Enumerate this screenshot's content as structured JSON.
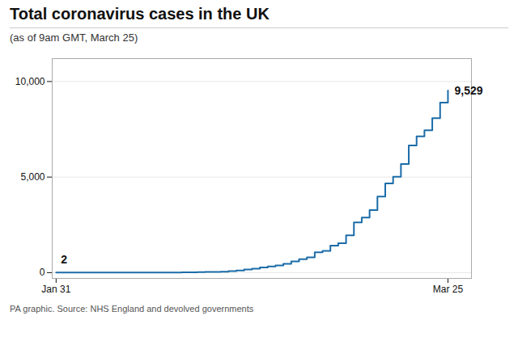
{
  "chart_data": {
    "type": "step",
    "title": "Total coronavirus cases in the UK",
    "subtitle": "(as of 9am GMT, March 25)",
    "source": "PA graphic. Source: NHS England and devolved governments",
    "color": "#1b6ca8",
    "x": [
      0,
      1,
      2,
      3,
      4,
      5,
      6,
      7,
      8,
      9,
      10,
      11,
      12,
      13,
      14,
      15,
      16,
      17,
      18,
      19,
      20,
      21,
      22,
      23,
      24,
      25,
      26,
      27,
      28,
      29,
      30,
      31,
      32,
      33,
      34,
      35,
      36,
      37,
      38,
      39,
      40,
      41,
      42,
      43,
      44,
      45,
      46,
      47,
      48,
      49,
      50
    ],
    "values": [
      2,
      2,
      2,
      3,
      3,
      3,
      3,
      3,
      3,
      3,
      4,
      4,
      4,
      4,
      9,
      9,
      13,
      19,
      23,
      35,
      40,
      51,
      85,
      115,
      163,
      206,
      273,
      321,
      373,
      456,
      590,
      708,
      798,
      1061,
      1140,
      1408,
      1543,
      1950,
      2626,
      2885,
      3269,
      3983,
      4667,
      5018,
      5683,
      6650,
      7132,
      7447,
      8077,
      8895,
      9529
    ],
    "xlim": [
      -0.5,
      53
    ],
    "xticks": [
      {
        "value": 0,
        "label": "Jan 31"
      },
      {
        "value": 50,
        "label": "Mar 25"
      }
    ],
    "ylim": [
      -300,
      11200
    ],
    "yticks": [
      0,
      {
        "value": 5000,
        "label": "5,000"
      },
      {
        "value": 10000,
        "label": "10,000"
      }
    ],
    "grid": true,
    "annotations": [
      {
        "text": "2",
        "x": 0,
        "y": 2
      },
      {
        "text": "9,529",
        "x": 50,
        "y": 9529
      }
    ]
  }
}
